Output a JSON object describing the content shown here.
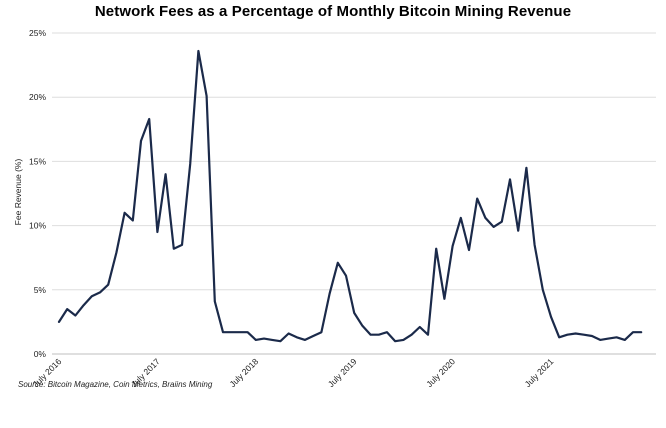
{
  "chart_data": {
    "type": "line",
    "title": "Network Fees as a Percentage of Monthly Bitcoin Mining Revenue",
    "ylabel": "Fee Revenue (%)",
    "xlabel": "",
    "source": "Source: Bitcoin Magazine, Coin Metrics, Braiins Mining",
    "ylim": [
      0,
      25
    ],
    "y_ticks": [
      0,
      5,
      10,
      15,
      20,
      25
    ],
    "y_tick_labels": [
      "0%",
      "5%",
      "10%",
      "15%",
      "20%",
      "25%"
    ],
    "x_tick_labels": [
      {
        "index": 0,
        "label": "July 2016"
      },
      {
        "index": 12,
        "label": "July 2017"
      },
      {
        "index": 24,
        "label": "July 2018"
      },
      {
        "index": 36,
        "label": "July 2019"
      },
      {
        "index": 48,
        "label": "July 2020"
      },
      {
        "index": 60,
        "label": "July 2021"
      }
    ],
    "grid": "horizontal",
    "line_color": "#1b2a4a",
    "series": [
      {
        "values": [
          2.5,
          3.5,
          3.0,
          3.8,
          4.5,
          4.8,
          5.4,
          7.9,
          11.0,
          10.4,
          16.6,
          18.3,
          9.5,
          14.0,
          8.2,
          8.5,
          14.8,
          23.6,
          20.1,
          4.1,
          1.7,
          1.7,
          1.7,
          1.7,
          1.1,
          1.2,
          1.1,
          1.0,
          1.6,
          1.3,
          1.1,
          1.4,
          1.7,
          4.7,
          7.1,
          6.1,
          3.2,
          2.2,
          1.5,
          1.5,
          1.7,
          1.0,
          1.1,
          1.5,
          2.1,
          1.5,
          8.2,
          4.3,
          8.4,
          10.6,
          8.1,
          12.1,
          10.6,
          9.9,
          10.3,
          13.6,
          9.6,
          14.5,
          8.5,
          5.0,
          2.9,
          1.3,
          1.5,
          1.6,
          1.5,
          1.4,
          1.1,
          1.2,
          1.3,
          1.1,
          1.7,
          1.7
        ]
      }
    ]
  }
}
